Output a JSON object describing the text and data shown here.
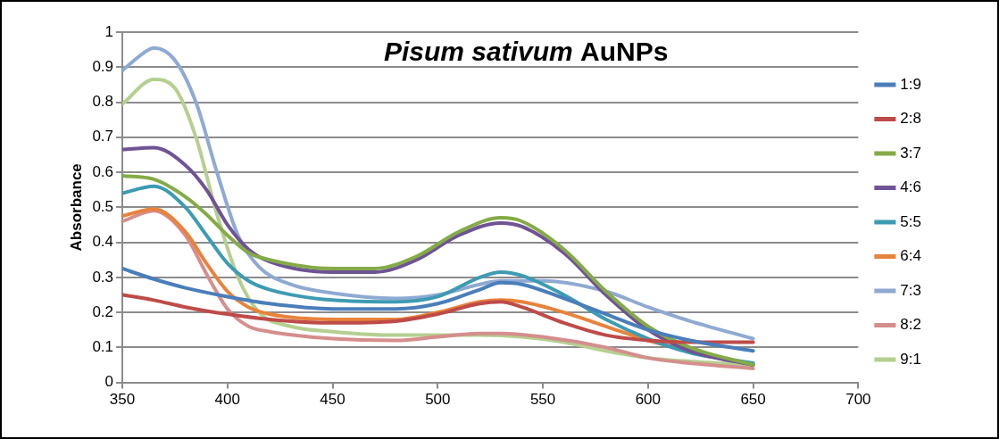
{
  "chart_data": {
    "type": "line",
    "title": "Pisum sativum AuNPs",
    "ylabel": "Absorbance",
    "xlim": [
      350,
      700
    ],
    "xticks": [
      350,
      400,
      450,
      500,
      550,
      600,
      650,
      700
    ],
    "ylim": [
      0,
      1
    ],
    "yticks": [
      0,
      0.1,
      0.2,
      0.3,
      0.4,
      0.5,
      0.6,
      0.7,
      0.8,
      0.9,
      1
    ],
    "grid": "y",
    "legend": "right",
    "marker": "none",
    "line_style": "solid",
    "series": [
      {
        "name": "1:9",
        "color": "#4a7ebb",
        "x": [
          350,
          365,
          380,
          400,
          420,
          450,
          480,
          500,
          520,
          530,
          540,
          560,
          580,
          600,
          620,
          650
        ],
        "values": [
          0.325,
          0.295,
          0.27,
          0.245,
          0.225,
          0.21,
          0.21,
          0.225,
          0.265,
          0.285,
          0.28,
          0.24,
          0.195,
          0.15,
          0.12,
          0.09
        ]
      },
      {
        "name": "2:8",
        "color": "#be4b48",
        "x": [
          350,
          365,
          380,
          400,
          420,
          450,
          480,
          500,
          520,
          530,
          540,
          560,
          580,
          600,
          620,
          650
        ],
        "values": [
          0.25,
          0.235,
          0.215,
          0.195,
          0.18,
          0.17,
          0.175,
          0.195,
          0.225,
          0.23,
          0.215,
          0.17,
          0.135,
          0.12,
          0.115,
          0.115
        ]
      },
      {
        "name": "3:7",
        "color": "#84ab47",
        "x": [
          350,
          365,
          380,
          390,
          400,
          410,
          420,
          450,
          470,
          490,
          510,
          530,
          540,
          560,
          580,
          600,
          620,
          650
        ],
        "values": [
          0.59,
          0.58,
          0.53,
          0.48,
          0.42,
          0.37,
          0.35,
          0.325,
          0.325,
          0.36,
          0.43,
          0.47,
          0.46,
          0.38,
          0.26,
          0.16,
          0.1,
          0.05
        ]
      },
      {
        "name": "4:6",
        "color": "#6f5395",
        "x": [
          350,
          365,
          380,
          390,
          400,
          410,
          420,
          450,
          470,
          490,
          510,
          530,
          540,
          560,
          580,
          600,
          620,
          650
        ],
        "values": [
          0.665,
          0.67,
          0.62,
          0.55,
          0.45,
          0.38,
          0.345,
          0.315,
          0.315,
          0.35,
          0.42,
          0.455,
          0.445,
          0.37,
          0.25,
          0.15,
          0.09,
          0.05
        ]
      },
      {
        "name": "5:5",
        "color": "#3d9bb3",
        "x": [
          350,
          365,
          380,
          390,
          400,
          410,
          420,
          450,
          480,
          500,
          520,
          530,
          540,
          560,
          580,
          600,
          620,
          650
        ],
        "values": [
          0.54,
          0.56,
          0.5,
          0.42,
          0.34,
          0.29,
          0.265,
          0.235,
          0.23,
          0.245,
          0.3,
          0.315,
          0.305,
          0.25,
          0.18,
          0.125,
          0.085,
          0.055
        ]
      },
      {
        "name": "6:4",
        "color": "#e8833a",
        "x": [
          350,
          365,
          380,
          390,
          400,
          410,
          420,
          450,
          480,
          500,
          520,
          530,
          540,
          560,
          580,
          600,
          620,
          650
        ],
        "values": [
          0.475,
          0.495,
          0.43,
          0.34,
          0.26,
          0.215,
          0.195,
          0.18,
          0.18,
          0.2,
          0.23,
          0.235,
          0.23,
          0.2,
          0.16,
          0.12,
          0.09,
          0.05
        ]
      },
      {
        "name": "7:3",
        "color": "#8eaad3",
        "x": [
          350,
          360,
          365,
          375,
          385,
          395,
          405,
          415,
          430,
          450,
          480,
          500,
          520,
          530,
          550,
          580,
          600,
          620,
          650
        ],
        "values": [
          0.89,
          0.94,
          0.955,
          0.92,
          0.8,
          0.6,
          0.42,
          0.33,
          0.28,
          0.255,
          0.24,
          0.25,
          0.28,
          0.29,
          0.29,
          0.26,
          0.215,
          0.175,
          0.125
        ]
      },
      {
        "name": "8:2",
        "color": "#d58e8c",
        "x": [
          350,
          365,
          380,
          390,
          400,
          410,
          420,
          450,
          480,
          500,
          520,
          530,
          550,
          580,
          600,
          620,
          650
        ],
        "values": [
          0.46,
          0.49,
          0.42,
          0.31,
          0.21,
          0.16,
          0.145,
          0.125,
          0.12,
          0.13,
          0.14,
          0.14,
          0.13,
          0.1,
          0.07,
          0.055,
          0.04
        ]
      },
      {
        "name": "9:1",
        "color": "#b5cf90",
        "x": [
          350,
          365,
          375,
          385,
          395,
          405,
          415,
          430,
          450,
          480,
          500,
          520,
          540,
          560,
          580,
          600,
          620,
          650
        ],
        "values": [
          0.795,
          0.865,
          0.84,
          0.7,
          0.48,
          0.3,
          0.2,
          0.16,
          0.145,
          0.135,
          0.135,
          0.135,
          0.13,
          0.115,
          0.09,
          0.07,
          0.06,
          0.05
        ]
      }
    ]
  }
}
